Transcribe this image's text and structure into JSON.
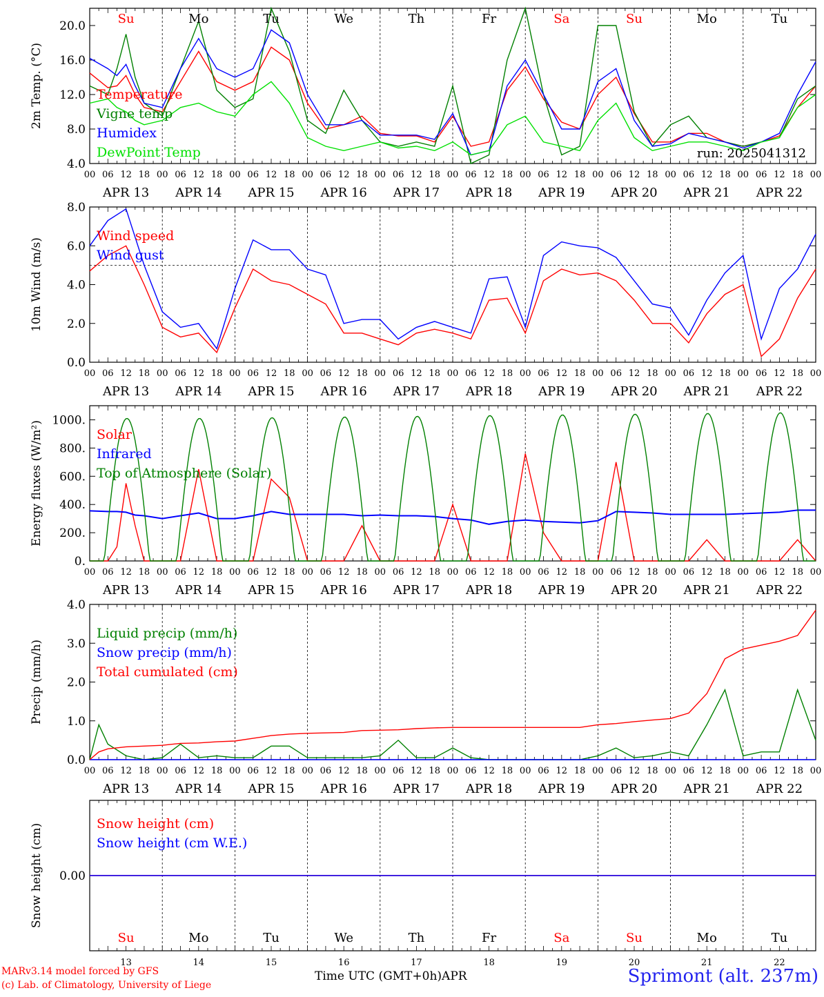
{
  "figure": {
    "run_label": "run: 2025041312",
    "x_title": "Time UTC (GMT+0h)",
    "month_label": "APR",
    "station": "Sprimont (alt. 237m)",
    "credits": [
      "MARv3.14 model forced by GFS",
      "(c) Lab. of Climatology, University of Liege"
    ],
    "days": [
      {
        "date": "APR 13",
        "day": "13",
        "weekday": "Su",
        "weekend": true
      },
      {
        "date": "APR 14",
        "day": "14",
        "weekday": "Mo",
        "weekend": false
      },
      {
        "date": "APR 15",
        "day": "15",
        "weekday": "Tu",
        "weekend": false
      },
      {
        "date": "APR 16",
        "day": "16",
        "weekday": "We",
        "weekend": false
      },
      {
        "date": "APR 17",
        "day": "17",
        "weekday": "Th",
        "weekend": false
      },
      {
        "date": "APR 18",
        "day": "18",
        "weekday": "Fr",
        "weekend": false
      },
      {
        "date": "APR 19",
        "day": "19",
        "weekday": "Sa",
        "weekend": true
      },
      {
        "date": "APR 20",
        "day": "20",
        "weekday": "Su",
        "weekend": true
      },
      {
        "date": "APR 21",
        "day": "21",
        "weekday": "Mo",
        "weekend": false
      },
      {
        "date": "APR 22",
        "day": "22",
        "weekday": "Tu",
        "weekend": false
      }
    ],
    "hour_ticks": [
      "00",
      "06",
      "12",
      "18"
    ],
    "final_tick": "00",
    "colors": {
      "red": "#ff0000",
      "blue": "#0000ff",
      "green": "#008000",
      "lightgreen": "#00e000",
      "axis": "#000000"
    }
  },
  "chart_data": [
    {
      "type": "line",
      "ylabel": "2m Temp. (°C)",
      "ylim": [
        4,
        22
      ],
      "yticks": [
        "4.0",
        "8.0",
        "12.0",
        "16.0",
        "20.0"
      ],
      "legend": "top-left",
      "x_hours": [
        0,
        6,
        9,
        12,
        15,
        18,
        24,
        30,
        36,
        42,
        48,
        54,
        60,
        66,
        72,
        78,
        84,
        90,
        96,
        102,
        108,
        114,
        120,
        126,
        132,
        138,
        144,
        150,
        156,
        162,
        168,
        174,
        180,
        186,
        192,
        198,
        204,
        210,
        216,
        222,
        228,
        234,
        240
      ],
      "series": [
        {
          "name": "Temperature",
          "color": "red",
          "values": [
            14.5,
            12.8,
            13.0,
            14.2,
            12.0,
            10.5,
            10.0,
            13.5,
            17.0,
            13.5,
            12.5,
            13.5,
            17.5,
            16.0,
            11.0,
            8.0,
            8.5,
            9.5,
            7.5,
            7.2,
            7.2,
            6.5,
            9.5,
            6.0,
            6.5,
            12.5,
            15.2,
            11.5,
            8.8,
            8.0,
            12.0,
            14.0,
            9.8,
            6.5,
            6.5,
            7.5,
            7.5,
            6.5,
            6.0,
            6.5,
            7.2,
            10.5,
            13.0
          ]
        },
        {
          "name": "Vigne temp",
          "color": "green",
          "values": [
            13.0,
            12.0,
            15.0,
            19.0,
            14.0,
            11.0,
            9.5,
            15.0,
            20.5,
            12.5,
            10.5,
            11.5,
            22.0,
            17.0,
            9.0,
            7.5,
            12.5,
            9.0,
            6.5,
            6.0,
            6.5,
            6.0,
            13.0,
            4.0,
            5.0,
            16.0,
            22.0,
            12.0,
            5.0,
            6.0,
            20.0,
            20.0,
            10.0,
            6.0,
            8.5,
            9.5,
            7.0,
            6.5,
            6.0,
            6.5,
            7.0,
            11.5,
            13.0
          ]
        },
        {
          "name": "Humidex",
          "color": "blue",
          "values": [
            16.2,
            15.0,
            14.2,
            15.5,
            13.0,
            11.0,
            10.5,
            15.0,
            18.5,
            15.0,
            14.0,
            15.0,
            19.5,
            18.0,
            12.0,
            8.5,
            8.5,
            9.0,
            7.3,
            7.3,
            7.3,
            6.8,
            9.8,
            5.0,
            5.5,
            13.0,
            16.0,
            12.0,
            8.0,
            8.0,
            13.5,
            15.0,
            9.0,
            6.0,
            6.3,
            7.5,
            7.0,
            6.5,
            5.8,
            6.5,
            7.5,
            12.0,
            15.8
          ]
        },
        {
          "name": "DewPoint Temp",
          "color": "lightgreen",
          "values": [
            11.0,
            11.5,
            10.5,
            10.0,
            9.0,
            8.5,
            9.0,
            10.5,
            11.0,
            10.0,
            9.5,
            12.0,
            13.5,
            11.0,
            7.0,
            6.0,
            5.5,
            6.0,
            6.5,
            5.8,
            6.0,
            5.5,
            6.5,
            5.0,
            5.5,
            8.5,
            9.5,
            6.5,
            6.0,
            5.5,
            9.0,
            11.0,
            7.0,
            5.5,
            6.0,
            6.5,
            6.5,
            6.0,
            5.5,
            6.5,
            7.0,
            10.5,
            12.0
          ]
        }
      ]
    },
    {
      "type": "line",
      "ylabel": "10m Wind (m/s)",
      "ylim": [
        0,
        8
      ],
      "yticks": [
        "0.0",
        "2.0",
        "4.0",
        "6.0",
        "8.0"
      ],
      "reference_line": 5,
      "legend": "top-left",
      "x_hours": [
        0,
        6,
        12,
        18,
        24,
        30,
        36,
        42,
        48,
        54,
        60,
        66,
        72,
        78,
        84,
        90,
        96,
        102,
        108,
        114,
        120,
        126,
        132,
        138,
        144,
        150,
        156,
        162,
        168,
        174,
        180,
        186,
        192,
        198,
        204,
        210,
        216,
        222,
        228,
        234,
        240
      ],
      "series": [
        {
          "name": "Wind speed",
          "color": "red",
          "values": [
            4.7,
            5.5,
            6.0,
            4.0,
            1.8,
            1.3,
            1.5,
            0.5,
            2.8,
            4.8,
            4.2,
            4.0,
            3.5,
            3.0,
            1.5,
            1.5,
            1.2,
            0.9,
            1.5,
            1.7,
            1.5,
            1.2,
            3.2,
            3.3,
            1.5,
            4.2,
            4.8,
            4.5,
            4.6,
            4.2,
            3.2,
            2.0,
            2.0,
            1.0,
            2.5,
            3.5,
            4.0,
            0.3,
            1.2,
            3.3,
            4.8
          ]
        },
        {
          "name": "Wind gust",
          "color": "blue",
          "values": [
            6.0,
            7.3,
            7.9,
            5.0,
            2.6,
            1.8,
            2.0,
            0.7,
            3.8,
            6.3,
            5.8,
            5.8,
            4.8,
            4.5,
            2.0,
            2.2,
            2.2,
            1.2,
            1.8,
            2.1,
            1.8,
            1.5,
            4.3,
            4.4,
            1.8,
            5.5,
            6.2,
            6.0,
            5.9,
            5.4,
            4.2,
            3.0,
            2.8,
            1.4,
            3.2,
            4.6,
            5.5,
            1.2,
            3.8,
            4.8,
            6.6
          ]
        }
      ]
    },
    {
      "type": "line",
      "ylabel": "Energy fluxes (W/m²)",
      "ylim": [
        0,
        1100
      ],
      "yticks": [
        "0.",
        "200.",
        "400.",
        "600.",
        "800.",
        "1000."
      ],
      "legend": "top-left",
      "x_hours": [
        0,
        6,
        9,
        12,
        15,
        18,
        24,
        30,
        36,
        42,
        48,
        54,
        60,
        66,
        72,
        78,
        84,
        90,
        96,
        102,
        108,
        114,
        120,
        126,
        132,
        138,
        144,
        150,
        156,
        162,
        168,
        174,
        180,
        186,
        192,
        198,
        204,
        210,
        216,
        222,
        228,
        234,
        240
      ],
      "series": [
        {
          "name": "Solar",
          "color": "red",
          "values": [
            0,
            0,
            100,
            550,
            250,
            0,
            0,
            0,
            650,
            0,
            0,
            0,
            580,
            450,
            0,
            0,
            0,
            250,
            0,
            0,
            0,
            0,
            400,
            0,
            0,
            0,
            760,
            200,
            0,
            0,
            0,
            700,
            0,
            0,
            0,
            0,
            150,
            0,
            0,
            0,
            0,
            150,
            0
          ]
        },
        {
          "name": "Infrared",
          "color": "blue",
          "values": [
            355,
            350,
            350,
            345,
            325,
            320,
            300,
            320,
            340,
            300,
            300,
            320,
            350,
            330,
            330,
            330,
            330,
            320,
            325,
            320,
            320,
            315,
            300,
            290,
            260,
            280,
            290,
            280,
            275,
            270,
            285,
            350,
            345,
            340,
            330,
            330,
            330,
            330,
            335,
            340,
            345,
            360,
            360
          ]
        },
        {
          "name": "Top of Atmosphere (Solar)",
          "color": "green",
          "daily_peaks": [
            1010,
            1010,
            1015,
            1020,
            1025,
            1030,
            1035,
            1040,
            1045,
            1050
          ],
          "sunrise_h": 4.8,
          "sunset_h": 19.8
        }
      ]
    },
    {
      "type": "line",
      "ylabel": "Precip (mm/h)",
      "ylim": [
        0,
        4
      ],
      "yticks": [
        "0.0",
        "1.0",
        "2.0",
        "3.0",
        "4.0"
      ],
      "legend": "top-left",
      "x_hours": [
        0,
        3,
        6,
        12,
        18,
        24,
        30,
        36,
        42,
        48,
        54,
        60,
        66,
        72,
        78,
        84,
        90,
        96,
        102,
        108,
        114,
        120,
        126,
        132,
        138,
        144,
        150,
        156,
        162,
        168,
        174,
        180,
        186,
        192,
        198,
        204,
        210,
        216,
        222,
        228,
        234,
        240
      ],
      "series": [
        {
          "name": "Liquid precip (mm/h)",
          "color": "green",
          "values": [
            0.0,
            0.9,
            0.4,
            0.1,
            0.0,
            0.05,
            0.4,
            0.05,
            0.1,
            0.05,
            0.05,
            0.35,
            0.35,
            0.05,
            0.05,
            0.05,
            0.05,
            0.1,
            0.5,
            0.05,
            0.05,
            0.3,
            0.05,
            0.0,
            0.0,
            0.0,
            0.0,
            0.0,
            0.0,
            0.1,
            0.3,
            0.05,
            0.1,
            0.2,
            0.1,
            0.9,
            1.8,
            0.1,
            0.2,
            0.2,
            1.8,
            0.5
          ]
        },
        {
          "name": "Snow precip (mm/h)",
          "color": "blue",
          "values": [
            0,
            0,
            0,
            0,
            0,
            0,
            0,
            0,
            0,
            0,
            0,
            0,
            0,
            0,
            0,
            0,
            0,
            0,
            0,
            0,
            0,
            0,
            0,
            0,
            0,
            0,
            0,
            0,
            0,
            0,
            0,
            0,
            0,
            0,
            0,
            0,
            0,
            0,
            0,
            0,
            0,
            0
          ]
        },
        {
          "name": "Total cumulated (cm)",
          "color": "red",
          "values": [
            0.0,
            0.2,
            0.28,
            0.33,
            0.35,
            0.37,
            0.42,
            0.43,
            0.46,
            0.48,
            0.55,
            0.62,
            0.66,
            0.68,
            0.69,
            0.7,
            0.75,
            0.76,
            0.77,
            0.8,
            0.82,
            0.83,
            0.83,
            0.83,
            0.83,
            0.83,
            0.83,
            0.83,
            0.83,
            0.9,
            0.93,
            0.98,
            1.02,
            1.06,
            1.2,
            1.7,
            2.6,
            2.85,
            2.95,
            3.05,
            3.2,
            3.85
          ]
        }
      ]
    },
    {
      "type": "line",
      "ylabel": "Snow height (cm)",
      "ylim": [
        -1,
        1
      ],
      "yticks": [
        "0.00"
      ],
      "legend": "top-left",
      "x_hours": [
        0,
        240
      ],
      "series": [
        {
          "name": "Snow height (cm)",
          "color": "red",
          "values": [
            0,
            0
          ]
        },
        {
          "name": "Snow height (cm W.E.)",
          "color": "blue",
          "values": [
            0,
            0
          ]
        }
      ]
    }
  ]
}
